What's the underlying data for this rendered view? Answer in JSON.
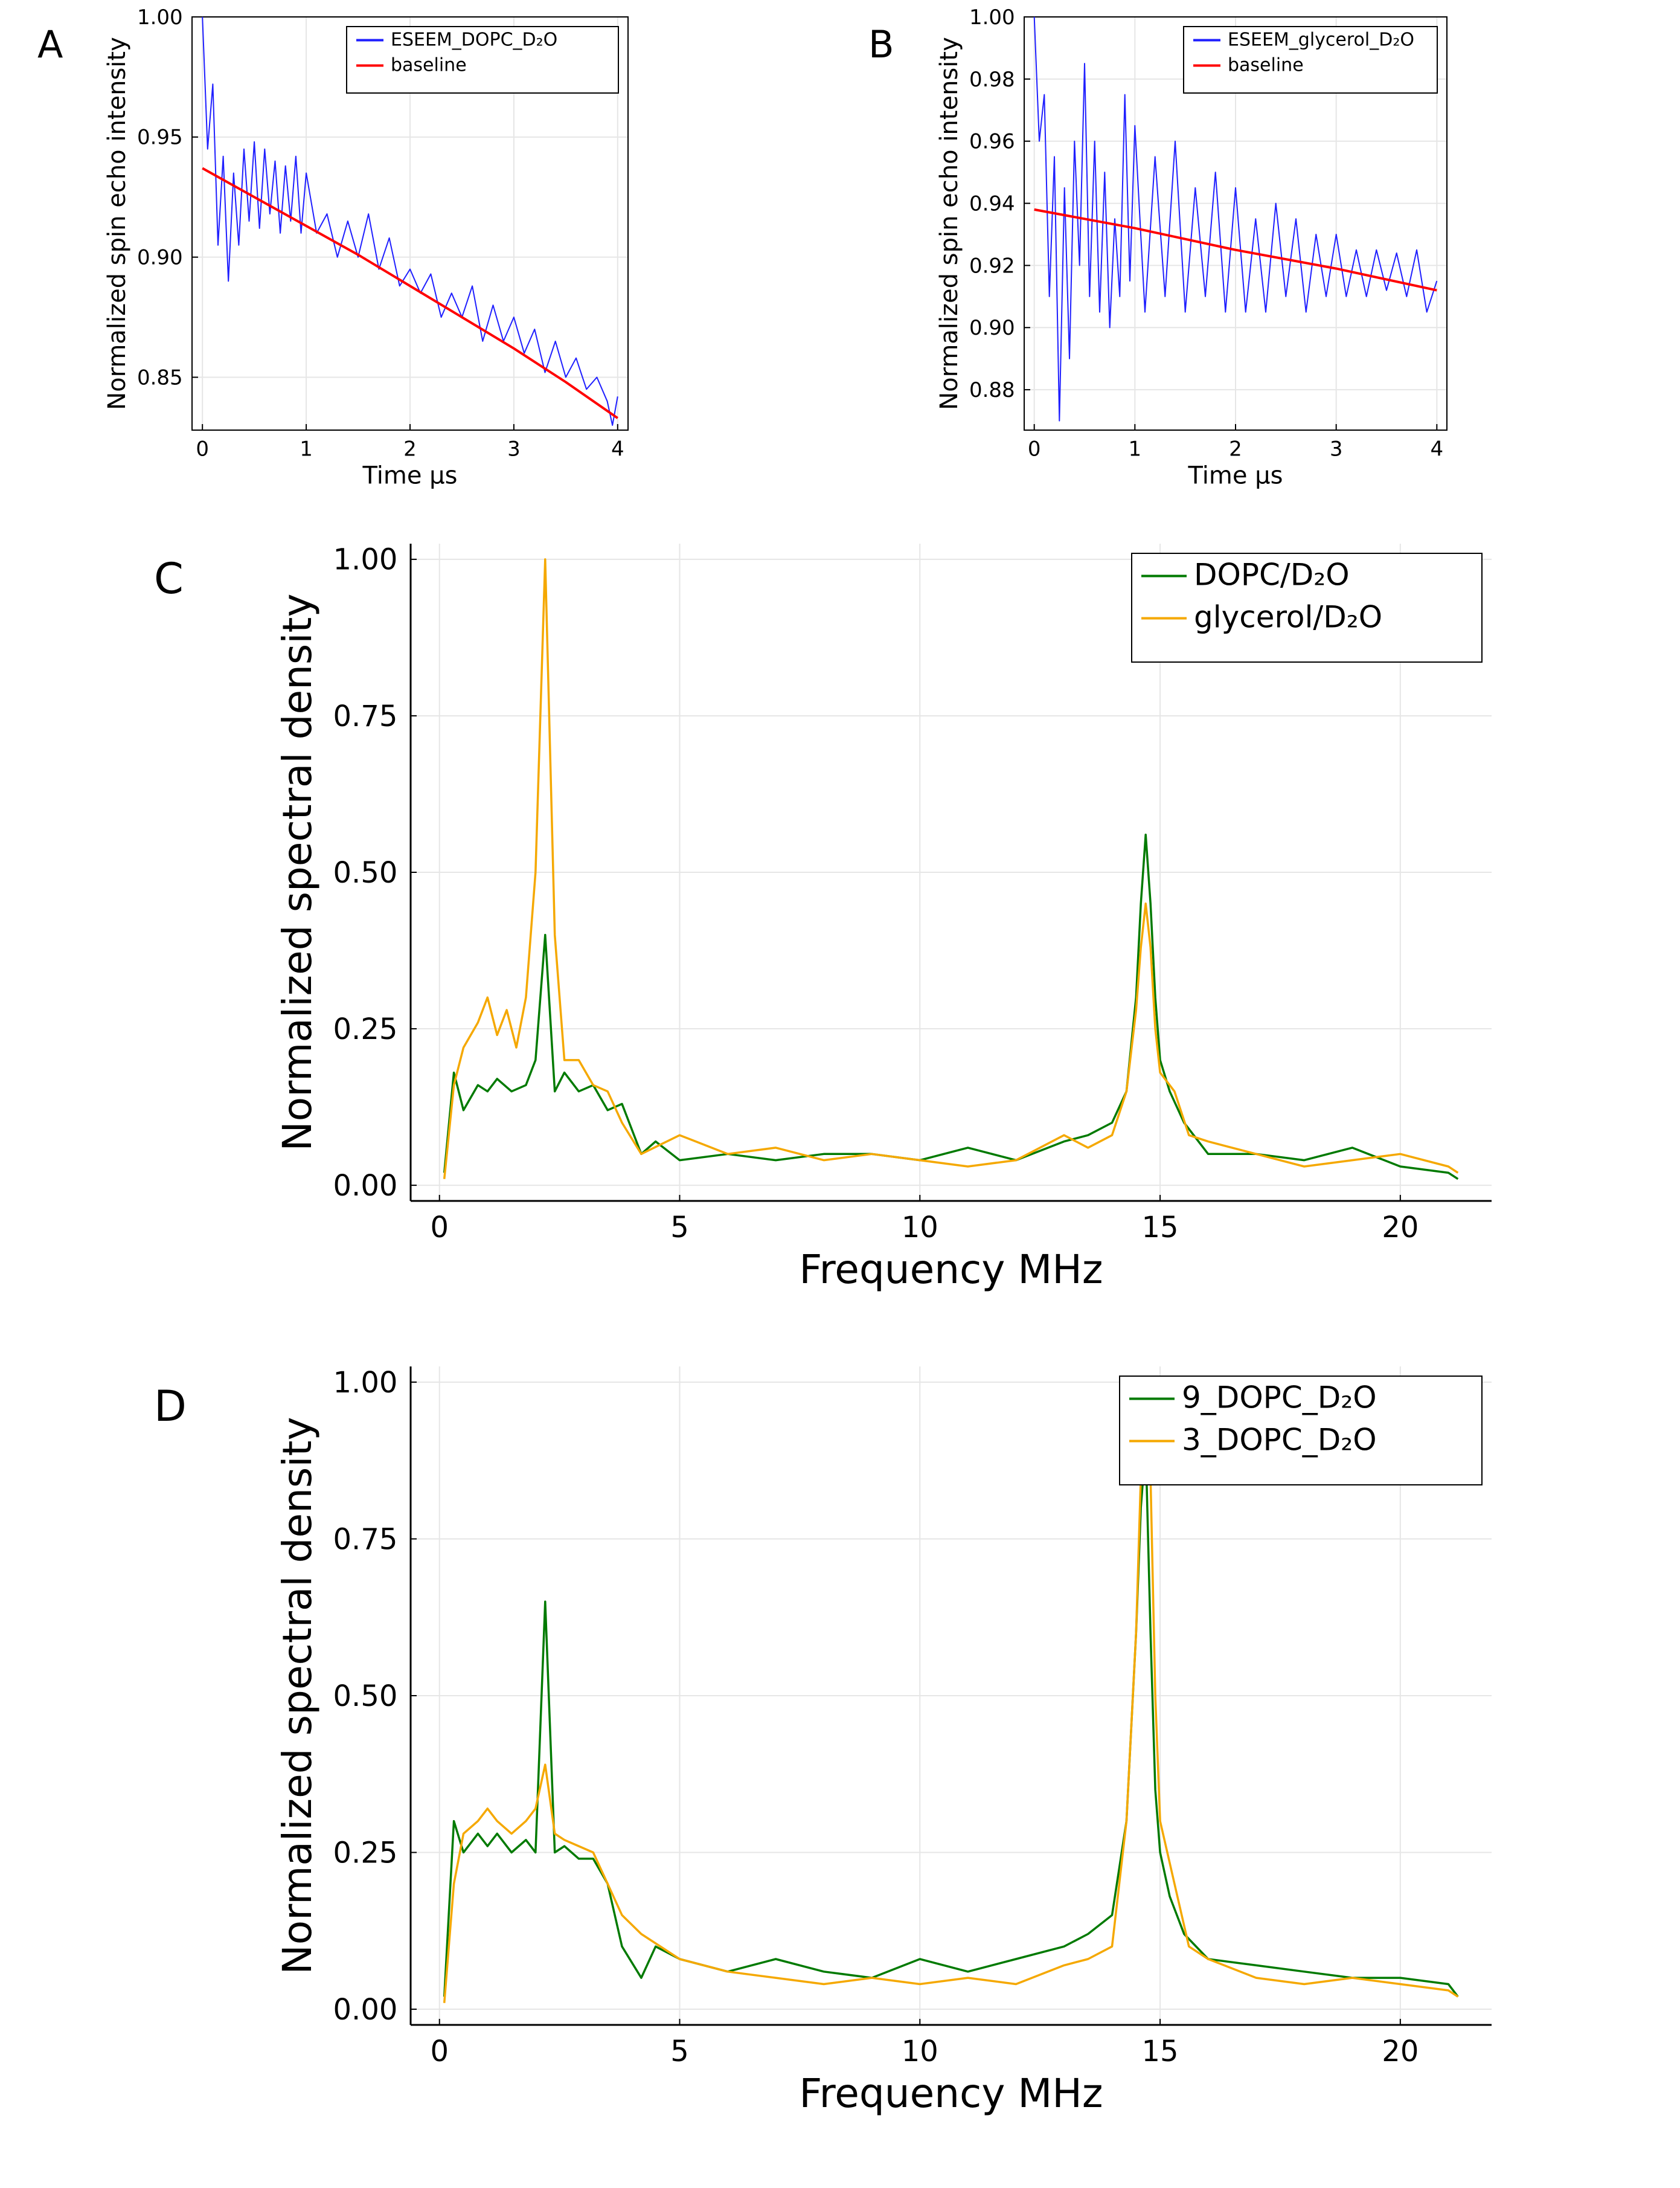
{
  "chart_data": [
    {
      "id": "A",
      "type": "line",
      "panel_label": "A",
      "xlabel": "Time μs",
      "ylabel": "Normalized spin echo intensity",
      "xlim": [
        -0.1,
        4.1
      ],
      "ylim": [
        0.828,
        1.0
      ],
      "xticks": [
        0,
        1,
        2,
        3,
        4
      ],
      "xtick_labels": [
        "0",
        "1",
        "2",
        "3",
        "4"
      ],
      "yticks": [
        0.85,
        0.9,
        0.95,
        1.0
      ],
      "ytick_labels": [
        "0.85",
        "0.90",
        "0.95",
        "1.00"
      ],
      "grid": true,
      "legend_position": "top-right",
      "series": [
        {
          "name": "ESEEM_DOPC_D₂O",
          "color": "#1f1fff",
          "x": [
            0.0,
            0.05,
            0.1,
            0.15,
            0.2,
            0.25,
            0.3,
            0.35,
            0.4,
            0.45,
            0.5,
            0.55,
            0.6,
            0.65,
            0.7,
            0.75,
            0.8,
            0.85,
            0.9,
            0.95,
            1.0,
            1.1,
            1.2,
            1.3,
            1.4,
            1.5,
            1.6,
            1.7,
            1.8,
            1.9,
            2.0,
            2.1,
            2.2,
            2.3,
            2.4,
            2.5,
            2.6,
            2.7,
            2.8,
            2.9,
            3.0,
            3.1,
            3.2,
            3.3,
            3.4,
            3.5,
            3.6,
            3.7,
            3.8,
            3.9,
            3.95,
            4.0
          ],
          "y": [
            1.0,
            0.945,
            0.972,
            0.905,
            0.942,
            0.89,
            0.935,
            0.905,
            0.945,
            0.915,
            0.948,
            0.912,
            0.945,
            0.918,
            0.94,
            0.91,
            0.938,
            0.915,
            0.942,
            0.91,
            0.935,
            0.91,
            0.918,
            0.9,
            0.915,
            0.9,
            0.918,
            0.895,
            0.908,
            0.888,
            0.895,
            0.885,
            0.893,
            0.875,
            0.885,
            0.875,
            0.888,
            0.865,
            0.88,
            0.865,
            0.875,
            0.86,
            0.87,
            0.852,
            0.865,
            0.85,
            0.858,
            0.845,
            0.85,
            0.84,
            0.83,
            0.842
          ]
        },
        {
          "name": "baseline",
          "color": "#ff0000",
          "x": [
            0,
            0.5,
            1,
            1.5,
            2,
            2.5,
            3,
            3.5,
            4
          ],
          "y": [
            0.937,
            0.925,
            0.913,
            0.901,
            0.888,
            0.875,
            0.862,
            0.848,
            0.833
          ]
        }
      ]
    },
    {
      "id": "B",
      "type": "line",
      "panel_label": "B",
      "xlabel": "Time μs",
      "ylabel": "Normalized spin echo intensity",
      "xlim": [
        -0.1,
        4.1
      ],
      "ylim": [
        0.867,
        1.0
      ],
      "xticks": [
        0,
        1,
        2,
        3,
        4
      ],
      "xtick_labels": [
        "0",
        "1",
        "2",
        "3",
        "4"
      ],
      "yticks": [
        0.88,
        0.9,
        0.92,
        0.94,
        0.96,
        0.98,
        1.0
      ],
      "ytick_labels": [
        "0.88",
        "0.90",
        "0.92",
        "0.94",
        "0.96",
        "0.98",
        "1.00"
      ],
      "grid": true,
      "legend_position": "top-right",
      "series": [
        {
          "name": "ESEEM_glycerol_D₂O",
          "color": "#1f1fff",
          "x": [
            0.0,
            0.05,
            0.1,
            0.15,
            0.2,
            0.25,
            0.3,
            0.35,
            0.4,
            0.45,
            0.5,
            0.55,
            0.6,
            0.65,
            0.7,
            0.75,
            0.8,
            0.85,
            0.9,
            0.95,
            1.0,
            1.1,
            1.2,
            1.3,
            1.4,
            1.5,
            1.6,
            1.7,
            1.8,
            1.9,
            2.0,
            2.1,
            2.2,
            2.3,
            2.4,
            2.5,
            2.6,
            2.7,
            2.8,
            2.9,
            3.0,
            3.1,
            3.2,
            3.3,
            3.4,
            3.5,
            3.6,
            3.7,
            3.8,
            3.9,
            4.0
          ],
          "y": [
            1.0,
            0.96,
            0.975,
            0.91,
            0.955,
            0.87,
            0.945,
            0.89,
            0.96,
            0.92,
            0.985,
            0.91,
            0.96,
            0.905,
            0.95,
            0.9,
            0.935,
            0.91,
            0.975,
            0.915,
            0.965,
            0.905,
            0.955,
            0.91,
            0.96,
            0.905,
            0.945,
            0.91,
            0.95,
            0.905,
            0.945,
            0.905,
            0.935,
            0.905,
            0.94,
            0.91,
            0.935,
            0.905,
            0.93,
            0.91,
            0.93,
            0.91,
            0.925,
            0.91,
            0.925,
            0.912,
            0.924,
            0.91,
            0.925,
            0.905,
            0.915
          ]
        },
        {
          "name": "baseline",
          "color": "#ff0000",
          "x": [
            0,
            1,
            2,
            3,
            4
          ],
          "y": [
            0.938,
            0.932,
            0.925,
            0.919,
            0.912
          ]
        }
      ]
    },
    {
      "id": "C",
      "type": "line",
      "panel_label": "C",
      "xlabel": "Frequency MHz",
      "ylabel": "Normalized spectral density",
      "xlim": [
        -0.6,
        21.9
      ],
      "ylim": [
        -0.025,
        1.025
      ],
      "xticks": [
        0,
        5,
        10,
        15,
        20
      ],
      "xtick_labels": [
        "0",
        "5",
        "10",
        "15",
        "20"
      ],
      "yticks": [
        0.0,
        0.25,
        0.5,
        0.75,
        1.0
      ],
      "ytick_labels": [
        "0.00",
        "0.25",
        "0.50",
        "0.75",
        "1.00"
      ],
      "grid": true,
      "legend_position": "top-right",
      "series": [
        {
          "name": "DOPC/D₂O",
          "color": "#007a00",
          "x": [
            0.1,
            0.3,
            0.5,
            0.8,
            1.0,
            1.2,
            1.5,
            1.8,
            2.0,
            2.2,
            2.4,
            2.6,
            2.9,
            3.2,
            3.5,
            3.8,
            4.2,
            4.5,
            5.0,
            6.0,
            7.0,
            8.0,
            9.0,
            10.0,
            11.0,
            12.0,
            13.0,
            13.5,
            14.0,
            14.3,
            14.5,
            14.6,
            14.7,
            14.8,
            14.9,
            15.0,
            15.2,
            15.5,
            16.0,
            17.0,
            18.0,
            19.0,
            20.0,
            21.0,
            21.2
          ],
          "y": [
            0.02,
            0.18,
            0.12,
            0.16,
            0.15,
            0.17,
            0.15,
            0.16,
            0.2,
            0.4,
            0.15,
            0.18,
            0.15,
            0.16,
            0.12,
            0.13,
            0.05,
            0.07,
            0.04,
            0.05,
            0.04,
            0.05,
            0.05,
            0.04,
            0.06,
            0.04,
            0.07,
            0.08,
            0.1,
            0.15,
            0.3,
            0.45,
            0.56,
            0.45,
            0.3,
            0.2,
            0.15,
            0.1,
            0.05,
            0.05,
            0.04,
            0.06,
            0.03,
            0.02,
            0.01
          ]
        },
        {
          "name": "glycerol/D₂O",
          "color": "#f5a800",
          "x": [
            0.1,
            0.3,
            0.5,
            0.8,
            1.0,
            1.2,
            1.4,
            1.6,
            1.8,
            2.0,
            2.2,
            2.4,
            2.6,
            2.9,
            3.2,
            3.5,
            3.8,
            4.2,
            5.0,
            6.0,
            7.0,
            8.0,
            9.0,
            10.0,
            11.0,
            12.0,
            13.0,
            13.5,
            14.0,
            14.3,
            14.5,
            14.6,
            14.7,
            14.8,
            14.9,
            15.0,
            15.3,
            15.6,
            16.0,
            17.0,
            18.0,
            19.0,
            20.0,
            21.0,
            21.2
          ],
          "y": [
            0.01,
            0.16,
            0.22,
            0.26,
            0.3,
            0.24,
            0.28,
            0.22,
            0.3,
            0.5,
            1.0,
            0.4,
            0.2,
            0.2,
            0.16,
            0.15,
            0.1,
            0.05,
            0.08,
            0.05,
            0.06,
            0.04,
            0.05,
            0.04,
            0.03,
            0.04,
            0.08,
            0.06,
            0.08,
            0.15,
            0.28,
            0.38,
            0.45,
            0.38,
            0.25,
            0.18,
            0.15,
            0.08,
            0.07,
            0.05,
            0.03,
            0.04,
            0.05,
            0.03,
            0.02
          ]
        }
      ]
    },
    {
      "id": "D",
      "type": "line",
      "panel_label": "D",
      "xlabel": "Frequency MHz",
      "ylabel": "Normalized spectral density",
      "xlim": [
        -0.6,
        21.9
      ],
      "ylim": [
        -0.025,
        1.025
      ],
      "xticks": [
        0,
        5,
        10,
        15,
        20
      ],
      "xtick_labels": [
        "0",
        "5",
        "10",
        "15",
        "20"
      ],
      "yticks": [
        0.0,
        0.25,
        0.5,
        0.75,
        1.0
      ],
      "ytick_labels": [
        "0.00",
        "0.25",
        "0.50",
        "0.75",
        "1.00"
      ],
      "grid": true,
      "legend_position": "top-right",
      "series": [
        {
          "name": "9_DOPC_D₂O",
          "color": "#007a00",
          "x": [
            0.1,
            0.3,
            0.5,
            0.8,
            1.0,
            1.2,
            1.5,
            1.8,
            2.0,
            2.2,
            2.4,
            2.6,
            2.9,
            3.2,
            3.5,
            3.8,
            4.2,
            4.5,
            5.0,
            6.0,
            7.0,
            8.0,
            9.0,
            10.0,
            11.0,
            12.0,
            13.0,
            13.5,
            14.0,
            14.3,
            14.5,
            14.6,
            14.7,
            14.8,
            14.9,
            15.0,
            15.2,
            15.5,
            16.0,
            17.0,
            18.0,
            19.0,
            20.0,
            21.0,
            21.2
          ],
          "y": [
            0.02,
            0.3,
            0.25,
            0.28,
            0.26,
            0.28,
            0.25,
            0.27,
            0.25,
            0.65,
            0.25,
            0.26,
            0.24,
            0.24,
            0.2,
            0.1,
            0.05,
            0.1,
            0.08,
            0.06,
            0.08,
            0.06,
            0.05,
            0.08,
            0.06,
            0.08,
            0.1,
            0.12,
            0.15,
            0.3,
            0.6,
            0.8,
            0.9,
            0.6,
            0.35,
            0.25,
            0.18,
            0.12,
            0.08,
            0.07,
            0.06,
            0.05,
            0.05,
            0.04,
            0.02
          ]
        },
        {
          "name": "3_DOPC_D₂O",
          "color": "#f5a800",
          "x": [
            0.1,
            0.3,
            0.5,
            0.8,
            1.0,
            1.2,
            1.5,
            1.8,
            2.0,
            2.2,
            2.4,
            2.6,
            2.9,
            3.2,
            3.5,
            3.8,
            4.2,
            5.0,
            6.0,
            7.0,
            8.0,
            9.0,
            10.0,
            11.0,
            12.0,
            13.0,
            13.5,
            14.0,
            14.3,
            14.5,
            14.6,
            14.7,
            14.8,
            14.9,
            15.0,
            15.3,
            15.6,
            16.0,
            17.0,
            18.0,
            19.0,
            20.0,
            21.0,
            21.2
          ],
          "y": [
            0.01,
            0.2,
            0.28,
            0.3,
            0.32,
            0.3,
            0.28,
            0.3,
            0.32,
            0.39,
            0.28,
            0.27,
            0.26,
            0.25,
            0.2,
            0.15,
            0.12,
            0.08,
            0.06,
            0.05,
            0.04,
            0.05,
            0.04,
            0.05,
            0.04,
            0.07,
            0.08,
            0.1,
            0.3,
            0.6,
            0.85,
            1.0,
            0.85,
            0.5,
            0.3,
            0.2,
            0.1,
            0.08,
            0.05,
            0.04,
            0.05,
            0.04,
            0.03,
            0.02
          ]
        }
      ]
    }
  ]
}
